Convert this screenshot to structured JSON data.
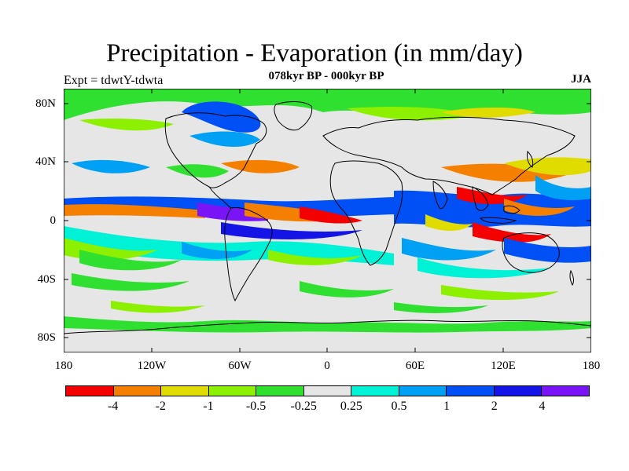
{
  "title": "Precipitation - Evaporation (in mm/day)",
  "subtitle": "078kyr BP - 000kyr BP",
  "experiment_label": "Expt = tdwtY-tdwta",
  "season": "JJA",
  "axes": {
    "latitude_labels": [
      "80N",
      "40N",
      "0",
      "40S",
      "80S"
    ],
    "longitude_labels": [
      "180",
      "120W",
      "60W",
      "0",
      "60E",
      "120E",
      "180"
    ]
  },
  "legend": {
    "colors": [
      "#f50000",
      "#f58000",
      "#e0dc00",
      "#8cf000",
      "#30e030",
      "#e6e6e6",
      "#00f2d6",
      "#00a0f5",
      "#0050f5",
      "#1414e6",
      "#7814f5"
    ],
    "labels": [
      "-4",
      "-2",
      "-1",
      "-0.5",
      "-0.25",
      "0.25",
      "0.5",
      "1",
      "2",
      "4"
    ]
  },
  "colors": {
    "background": "#e6e6e6",
    "coastline": "#000000"
  }
}
